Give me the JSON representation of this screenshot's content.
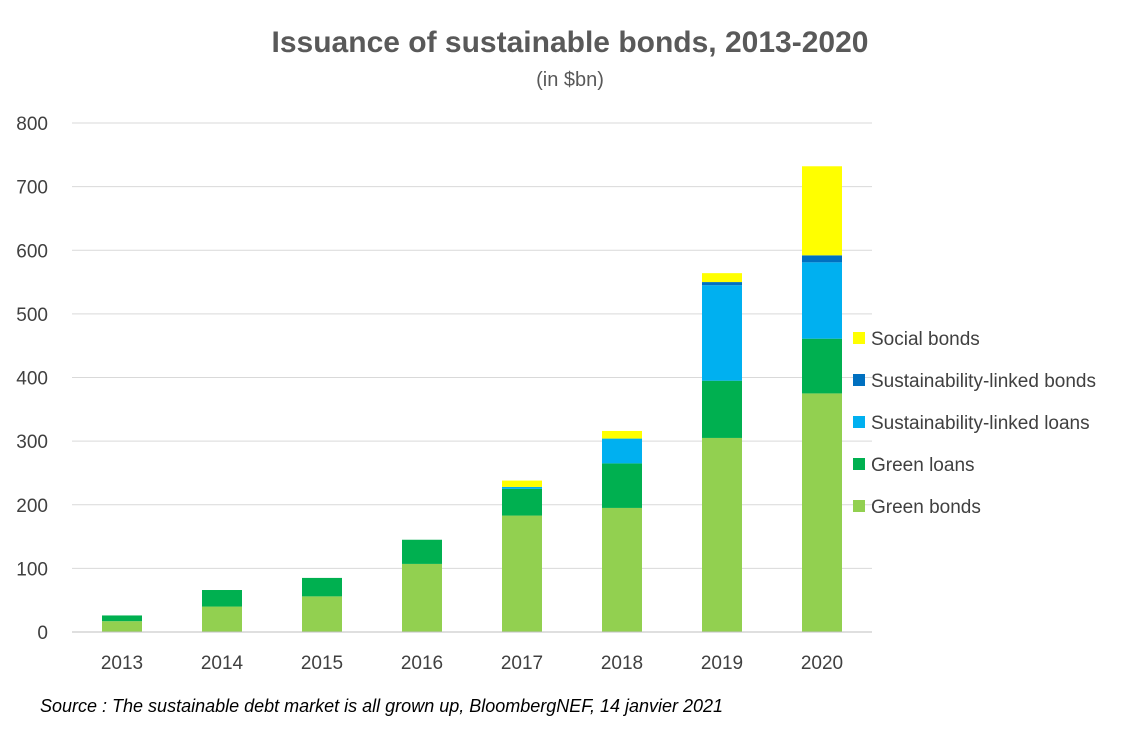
{
  "chart_data": {
    "type": "bar",
    "stacked": true,
    "title": "Issuance of sustainable bonds, 2013-2020",
    "subtitle": "(in $bn)",
    "categories": [
      "2013",
      "2014",
      "2015",
      "2016",
      "2017",
      "2018",
      "2019",
      "2020"
    ],
    "series": [
      {
        "name": "Green bonds",
        "color": "#92d050",
        "values": [
          17,
          40,
          56,
          107,
          183,
          195,
          305,
          375
        ]
      },
      {
        "name": "Green loans",
        "color": "#00b050",
        "values": [
          9,
          26,
          29,
          38,
          42,
          70,
          90,
          86
        ]
      },
      {
        "name": "Sustainability-linked loans",
        "color": "#00b0f0",
        "values": [
          0,
          0,
          0,
          0,
          3,
          39,
          150,
          120
        ]
      },
      {
        "name": "Sustainability-linked bonds",
        "color": "#0070c0",
        "values": [
          0,
          0,
          0,
          0,
          0,
          0,
          5,
          11
        ]
      },
      {
        "name": "Social bonds",
        "color": "#ffff00",
        "values": [
          0,
          0,
          0,
          0,
          10,
          12,
          14,
          140
        ]
      }
    ],
    "ylim": [
      0,
      800
    ],
    "yticks": [
      0,
      100,
      200,
      300,
      400,
      500,
      600,
      700,
      800
    ],
    "grid": true,
    "legend_position": "right",
    "legend_order": [
      "Social bonds",
      "Sustainability-linked bonds",
      "Sustainability-linked loans",
      "Green loans",
      "Green bonds"
    ],
    "xlabel": "",
    "ylabel": ""
  },
  "source": "Source : The sustainable debt market is all grown up, BloombergNEF, 14 janvier 2021"
}
